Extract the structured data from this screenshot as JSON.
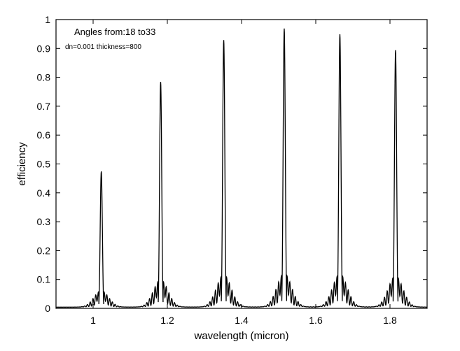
{
  "chart_data": {
    "type": "line",
    "xlabel": "wavelength (micron)",
    "ylabel": "efficiency",
    "xlim": [
      0.9,
      1.9
    ],
    "ylim": [
      0,
      1
    ],
    "xticks": [
      1,
      1.2,
      1.4,
      1.6,
      1.8
    ],
    "xtick_labels": [
      "1",
      "1.2",
      "1.4",
      "1.6",
      "1.8"
    ],
    "yticks": [
      0,
      0.1,
      0.2,
      0.3,
      0.4,
      0.5,
      0.6,
      0.7,
      0.8,
      0.9,
      1
    ],
    "ytick_labels": [
      "0",
      "0.1",
      "0.2",
      "0.3",
      "0.4",
      "0.5",
      "0.6",
      "0.7",
      "0.8",
      "0.9",
      "1"
    ],
    "grid": false,
    "annotations": [
      {
        "text": "Angles from:18 to33"
      },
      {
        "text": "dn=0.001 thickness=800"
      }
    ],
    "series": [
      {
        "color": "#000000",
        "peaks": [
          {
            "center": 1.022,
            "peak": 0.47
          },
          {
            "center": 1.182,
            "peak": 0.78
          },
          {
            "center": 1.352,
            "peak": 0.925
          },
          {
            "center": 1.515,
            "peak": 0.965
          },
          {
            "center": 1.665,
            "peak": 0.945
          },
          {
            "center": 1.815,
            "peak": 0.89
          }
        ]
      }
    ]
  }
}
